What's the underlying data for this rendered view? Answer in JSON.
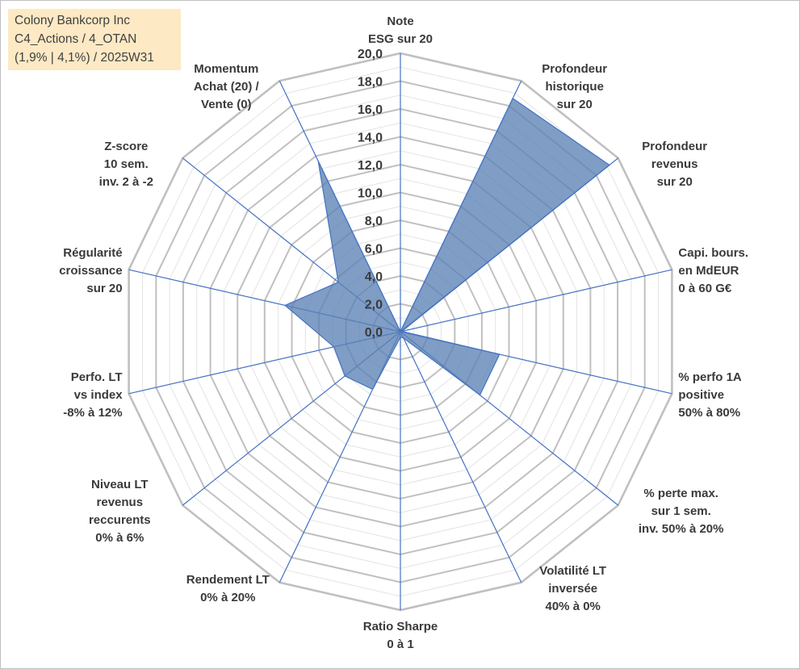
{
  "info": {
    "line1": "Colony Bankcorp Inc",
    "line2": "C4_Actions / 4_OTAN",
    "line3": "(1,9% | 4,1%) / 2025W31"
  },
  "chart_data": {
    "type": "radar",
    "title": "",
    "rmin": 0,
    "rmax": 20,
    "ticks": [
      "0,0",
      "2,0",
      "4,0",
      "6,0",
      "8,0",
      "10,0",
      "12,0",
      "14,0",
      "16,0",
      "18,0",
      "20,0"
    ],
    "grid": true,
    "legend": "none",
    "colors": {
      "fill": "#5b82b5",
      "stroke": "#4472c4",
      "axis": "#4472c4",
      "grid": "#c0c0c0"
    },
    "axes": [
      {
        "lines": [
          "Note",
          "ESG sur 20"
        ]
      },
      {
        "lines": [
          "Profondeur",
          "historique",
          "sur 20"
        ]
      },
      {
        "lines": [
          "Profondeur",
          "revenus",
          "sur 20"
        ]
      },
      {
        "lines": [
          "Capi. bours.",
          "en MdEUR",
          "0 à 60 G€"
        ]
      },
      {
        "lines": [
          "% perfo 1A",
          "positive",
          "50% à 80%"
        ]
      },
      {
        "lines": [
          "% perte max.",
          "sur 1 sem.",
          "inv. 50% à 20%"
        ]
      },
      {
        "lines": [
          "Volatilité LT",
          "inversée",
          "40% à 0%"
        ]
      },
      {
        "lines": [
          "Ratio Sharpe",
          "0 à 1"
        ]
      },
      {
        "lines": [
          "Rendement LT",
          "0% à 20%"
        ]
      },
      {
        "lines": [
          "Niveau LT",
          "revenus",
          "reccurents",
          "0% à 6%"
        ]
      },
      {
        "lines": [
          "Perfo. LT",
          "vs index",
          "-8% à 12%"
        ]
      },
      {
        "lines": [
          "Régularité",
          "croissance",
          "sur 20"
        ]
      },
      {
        "lines": [
          "Z-score",
          "10 sem.",
          "inv. 2 à -2"
        ]
      },
      {
        "lines": [
          "Momentum",
          "Achat (20) /",
          "Vente (0)"
        ]
      }
    ],
    "series": [
      {
        "values": [
          0,
          18.6,
          19.2,
          0.1,
          7.3,
          7.3,
          0.5,
          0.4,
          4.6,
          5.1,
          4.9,
          8.5,
          5.7,
          13.6
        ]
      }
    ]
  }
}
